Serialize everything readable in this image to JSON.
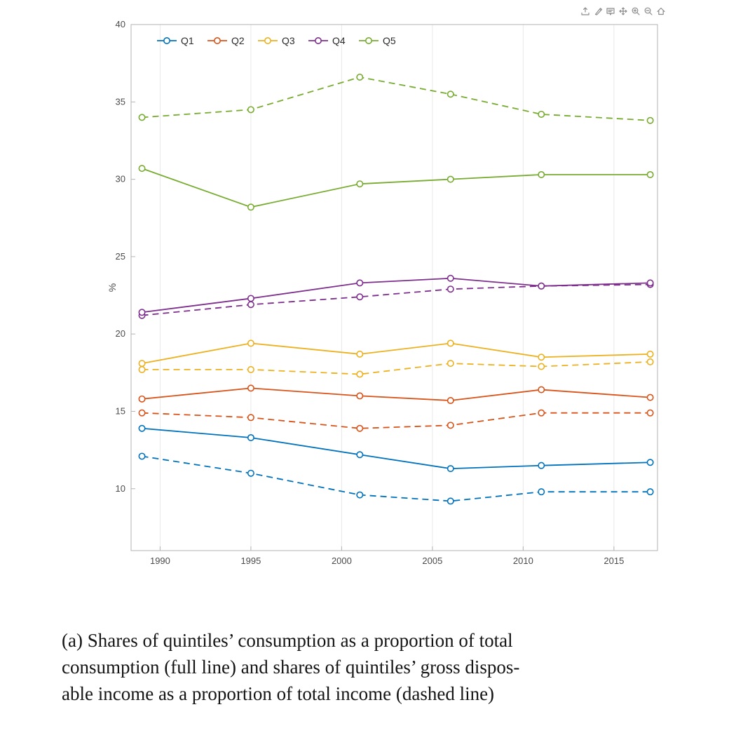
{
  "toolbar": {
    "icons": [
      "export",
      "brush",
      "datatips",
      "pan",
      "zoom-in",
      "zoom-out",
      "restore-view"
    ]
  },
  "chart_data": {
    "type": "line",
    "title": "",
    "xlabel": "",
    "ylabel": "%",
    "x": [
      1989,
      1995,
      2001,
      2006,
      2011,
      2017
    ],
    "x_ticks": [
      1990,
      1995,
      2000,
      2005,
      2010,
      2015
    ],
    "y_ticks": [
      10,
      15,
      20,
      25,
      30,
      35,
      40
    ],
    "xlim": [
      1988.4,
      2017.4
    ],
    "ylim": [
      6,
      40
    ],
    "grid": "vertical-only",
    "legend": {
      "position": "top-left-inside",
      "orientation": "horizontal"
    },
    "series": [
      {
        "name": "Q1",
        "color": "#0072BD",
        "consumption_share_solid": [
          13.9,
          13.3,
          12.2,
          11.3,
          11.5,
          11.7
        ],
        "income_share_dashed": [
          12.1,
          11.0,
          9.6,
          9.2,
          9.8,
          9.8
        ]
      },
      {
        "name": "Q2",
        "color": "#D95319",
        "consumption_share_solid": [
          15.8,
          16.5,
          16.0,
          15.7,
          16.4,
          15.9
        ],
        "income_share_dashed": [
          14.9,
          14.6,
          13.9,
          14.1,
          14.9,
          14.9
        ]
      },
      {
        "name": "Q3",
        "color": "#EDB120",
        "consumption_share_solid": [
          18.1,
          19.4,
          18.7,
          19.4,
          18.5,
          18.7
        ],
        "income_share_dashed": [
          17.7,
          17.7,
          17.4,
          18.1,
          17.9,
          18.2
        ]
      },
      {
        "name": "Q4",
        "color": "#7E2F8E",
        "consumption_share_solid": [
          21.4,
          22.3,
          23.3,
          23.6,
          23.1,
          23.3
        ],
        "income_share_dashed": [
          21.2,
          21.9,
          22.4,
          22.9,
          23.1,
          23.2
        ]
      },
      {
        "name": "Q5",
        "color": "#77AC30",
        "consumption_share_solid": [
          30.7,
          28.2,
          29.7,
          30.0,
          30.3,
          30.3
        ],
        "income_share_dashed": [
          34.0,
          34.5,
          36.6,
          35.5,
          34.2,
          33.8
        ]
      }
    ]
  },
  "caption": {
    "lines": [
      "(a) Shares of quintiles’ consumption as a proportion of total",
      "consumption (full line) and shares of quintiles’ gross dispos-",
      "able income as a proportion of total income (dashed line)"
    ]
  }
}
